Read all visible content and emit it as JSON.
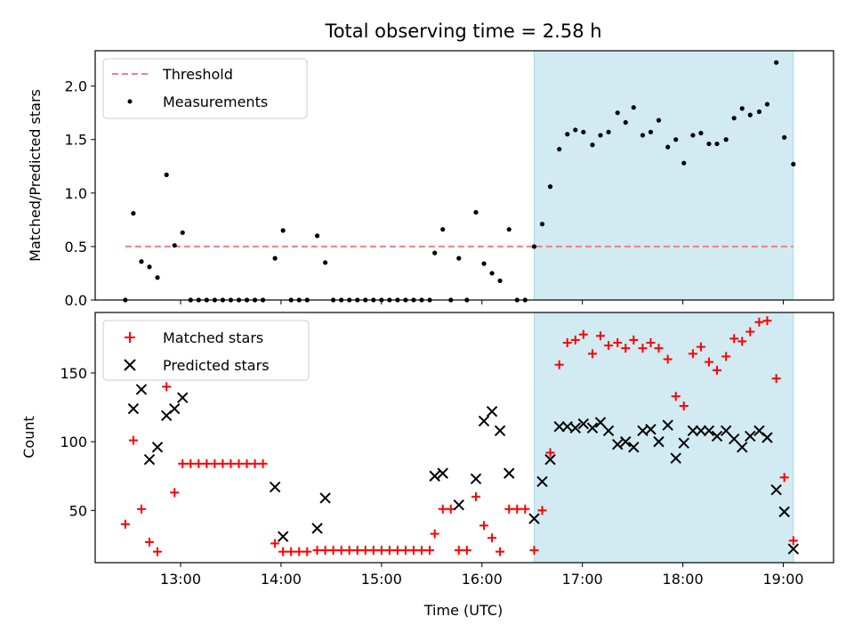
{
  "chart_data": {
    "title": "Total observing time = 2.58 h",
    "x_axis": {
      "label": "Time (UTC)",
      "range_hours": [
        12.15,
        19.5
      ],
      "ticks": [
        {
          "value": 13,
          "label": "13:00"
        },
        {
          "value": 14,
          "label": "14:00"
        },
        {
          "value": 15,
          "label": "15:00"
        },
        {
          "value": 16,
          "label": "16:00"
        },
        {
          "value": 17,
          "label": "17:00"
        },
        {
          "value": 18,
          "label": "18:00"
        },
        {
          "value": 19,
          "label": "19:00"
        }
      ]
    },
    "shaded_span": {
      "start": 16.52,
      "end": 19.1,
      "color": "#add8e6"
    },
    "panels": [
      {
        "type": "scatter",
        "ylabel": "Matched/Predicted stars",
        "ylim": [
          0,
          2.33
        ],
        "yticks": [
          "0.0",
          "0.5",
          "1.0",
          "1.5",
          "2.0"
        ],
        "legend_position": "top-left",
        "series": [
          {
            "name": "Threshold",
            "type": "line",
            "style": "dashed",
            "color": "#f08080",
            "x": [
              12.45,
              19.1
            ],
            "y": [
              0.5,
              0.5
            ]
          },
          {
            "name": "Measurements",
            "type": "scatter",
            "marker": "dot",
            "color": "#000000",
            "x": [
              12.45,
              12.53,
              12.61,
              12.69,
              12.77,
              12.86,
              12.94,
              13.02,
              13.1,
              13.18,
              13.26,
              13.34,
              13.42,
              13.5,
              13.58,
              13.66,
              13.74,
              13.82,
              13.94,
              14.02,
              14.1,
              14.18,
              14.26,
              14.36,
              14.44,
              14.52,
              14.6,
              14.68,
              14.76,
              14.84,
              14.92,
              15.0,
              15.08,
              15.16,
              15.24,
              15.32,
              15.4,
              15.48,
              15.53,
              15.61,
              15.69,
              15.77,
              15.85,
              15.94,
              16.02,
              16.1,
              16.18,
              16.27,
              16.35,
              16.43,
              16.52,
              16.6,
              16.68,
              16.77,
              16.85,
              16.93,
              17.01,
              17.1,
              17.18,
              17.26,
              17.35,
              17.43,
              17.51,
              17.6,
              17.68,
              17.76,
              17.85,
              17.93,
              18.01,
              18.1,
              18.18,
              18.26,
              18.34,
              18.43,
              18.51,
              18.59,
              18.67,
              18.76,
              18.84,
              18.93,
              19.01,
              19.1
            ],
            "y": [
              0.0,
              0.81,
              0.36,
              0.31,
              0.21,
              1.17,
              0.51,
              0.63,
              0.0,
              0.0,
              0.0,
              0.0,
              0.0,
              0.0,
              0.0,
              0.0,
              0.0,
              0.0,
              0.39,
              0.65,
              0.0,
              0.0,
              0.0,
              0.6,
              0.35,
              0.0,
              0.0,
              0.0,
              0.0,
              0.0,
              0.0,
              0.0,
              0.0,
              0.0,
              0.0,
              0.0,
              0.0,
              0.0,
              0.44,
              0.66,
              0.0,
              0.39,
              0.0,
              0.82,
              0.34,
              0.25,
              0.18,
              0.66,
              0.0,
              0.0,
              0.5,
              0.71,
              1.06,
              1.41,
              1.55,
              1.59,
              1.57,
              1.45,
              1.54,
              1.57,
              1.75,
              1.66,
              1.8,
              1.54,
              1.57,
              1.68,
              1.43,
              1.5,
              1.28,
              1.54,
              1.56,
              1.46,
              1.46,
              1.5,
              1.7,
              1.79,
              1.73,
              1.76,
              1.83,
              2.22,
              1.52,
              1.27
            ]
          }
        ]
      },
      {
        "type": "scatter",
        "ylabel": "Count",
        "ylim": [
          12,
          194
        ],
        "yticks": [
          "50",
          "100",
          "150"
        ],
        "legend_position": "top-left",
        "series": [
          {
            "name": "Matched stars",
            "type": "scatter",
            "marker": "plus",
            "color": "#ff0000",
            "x": [
              12.45,
              12.53,
              12.61,
              12.69,
              12.77,
              12.86,
              12.94,
              13.02,
              13.1,
              13.18,
              13.26,
              13.34,
              13.42,
              13.5,
              13.58,
              13.66,
              13.74,
              13.82,
              13.94,
              14.02,
              14.1,
              14.18,
              14.26,
              14.36,
              14.44,
              14.52,
              14.6,
              14.68,
              14.76,
              14.84,
              14.92,
              15.0,
              15.08,
              15.16,
              15.24,
              15.32,
              15.4,
              15.48,
              15.53,
              15.61,
              15.69,
              15.77,
              15.85,
              15.94,
              16.02,
              16.1,
              16.18,
              16.27,
              16.35,
              16.43,
              16.52,
              16.6,
              16.68,
              16.77,
              16.85,
              16.93,
              17.01,
              17.1,
              17.18,
              17.26,
              17.35,
              17.43,
              17.51,
              17.6,
              17.68,
              17.76,
              17.85,
              17.93,
              18.01,
              18.1,
              18.18,
              18.26,
              18.34,
              18.43,
              18.51,
              18.59,
              18.67,
              18.76,
              18.84,
              18.93,
              19.01,
              19.1
            ],
            "y": [
              40,
              101,
              51,
              27,
              20,
              140,
              63,
              84,
              84,
              84,
              84,
              84,
              84,
              84,
              84,
              84,
              84,
              84,
              26,
              20,
              20,
              20,
              20,
              21,
              21,
              21,
              21,
              21,
              21,
              21,
              21,
              21,
              21,
              21,
              21,
              21,
              21,
              21,
              33,
              51,
              51,
              21,
              21,
              60,
              39,
              30,
              20,
              51,
              51,
              51,
              21,
              50,
              92,
              156,
              172,
              174,
              178,
              164,
              177,
              170,
              172,
              168,
              174,
              168,
              172,
              168,
              160,
              133,
              126,
              164,
              169,
              158,
              152,
              162,
              175,
              173,
              180,
              187,
              188,
              146,
              74,
              28
            ]
          },
          {
            "name": "Predicted stars",
            "type": "scatter",
            "marker": "x",
            "color": "#000000",
            "x": [
              12.53,
              12.61,
              12.69,
              12.77,
              12.86,
              12.94,
              13.02,
              13.94,
              14.02,
              14.36,
              14.44,
              15.53,
              15.61,
              15.77,
              15.94,
              16.02,
              16.1,
              16.18,
              16.27,
              16.52,
              16.6,
              16.68,
              16.77,
              16.85,
              16.93,
              17.01,
              17.1,
              17.18,
              17.26,
              17.35,
              17.43,
              17.51,
              17.6,
              17.68,
              17.76,
              17.85,
              17.93,
              18.01,
              18.1,
              18.18,
              18.26,
              18.34,
              18.43,
              18.51,
              18.59,
              18.67,
              18.76,
              18.84,
              18.93,
              19.01,
              19.1
            ],
            "y": [
              124,
              138,
              87,
              96,
              119,
              124,
              132,
              67,
              31,
              37,
              59,
              75,
              77,
              54,
              73,
              115,
              122,
              108,
              77,
              44,
              71,
              87,
              111,
              111,
              110,
              113,
              110,
              114,
              108,
              98,
              100,
              96,
              108,
              109,
              100,
              112,
              88,
              99,
              108,
              108,
              108,
              104,
              108,
              102,
              96,
              104,
              108,
              103,
              65,
              49,
              22
            ]
          }
        ]
      }
    ]
  }
}
